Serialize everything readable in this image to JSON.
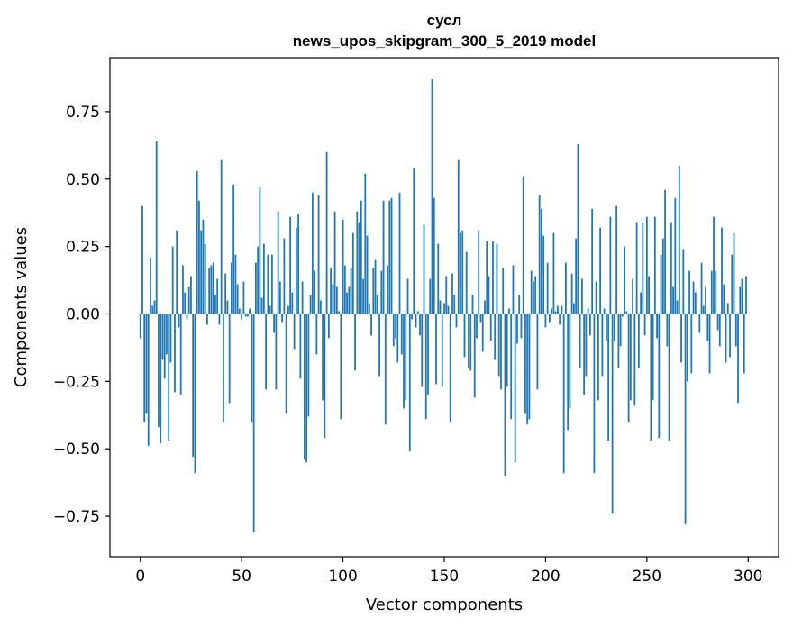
{
  "chart_data": {
    "type": "bar",
    "title": "сусл",
    "subtitle": "news_upos_skipgram_300_5_2019 model",
    "xlabel": "Vector components",
    "ylabel": "Components values",
    "xlim": [
      -15,
      315
    ],
    "ylim": [
      -0.9,
      0.95
    ],
    "xticks": [
      0,
      50,
      100,
      150,
      200,
      250,
      300
    ],
    "xtick_labels": [
      "0",
      "50",
      "100",
      "150",
      "200",
      "250",
      "300"
    ],
    "yticks": [
      -0.75,
      -0.5,
      -0.25,
      0.0,
      0.25,
      0.5,
      0.75
    ],
    "ytick_labels": [
      "−0.75",
      "−0.50",
      "−0.25",
      "0.00",
      "0.25",
      "0.50",
      "0.75"
    ],
    "grid": false,
    "bar_color": "#1f77b4",
    "x": "component index 0–299",
    "values": [
      -0.09,
      0.4,
      -0.4,
      -0.37,
      -0.49,
      0.21,
      0.03,
      0.05,
      0.64,
      -0.42,
      -0.48,
      -0.17,
      -0.24,
      -0.15,
      -0.47,
      -0.18,
      0.25,
      -0.29,
      0.31,
      -0.05,
      -0.3,
      0.18,
      0.08,
      -0.02,
      0.1,
      0.14,
      -0.53,
      -0.59,
      0.53,
      0.42,
      0.31,
      0.35,
      0.26,
      -0.04,
      0.17,
      0.18,
      0.19,
      0.07,
      0.13,
      -0.04,
      0.57,
      -0.4,
      0.15,
      0.05,
      -0.33,
      0.19,
      0.48,
      0.22,
      0.11,
      0.02,
      -0.02,
      0.12,
      -0.01,
      -0.01,
      0.02,
      -0.4,
      -0.81,
      0.19,
      0.25,
      0.47,
      0.06,
      0.26,
      -0.28,
      0.22,
      0.03,
      0.22,
      -0.07,
      -0.28,
      0.38,
      0.12,
      -0.03,
      0.28,
      -0.37,
      0.03,
      0.36,
      0.08,
      -0.13,
      0.32,
      0.37,
      -0.24,
      0.12,
      -0.54,
      -0.55,
      -0.38,
      0.07,
      0.45,
      0.16,
      -0.15,
      0.44,
      0.05,
      -0.32,
      -0.46,
      0.6,
      -0.09,
      0.17,
      0.11,
      0.38,
      0.1,
      0.01,
      -0.39,
      0.35,
      0.18,
      0.08,
      0.1,
      0.17,
      0.3,
      -0.21,
      0.38,
      0.34,
      0.42,
      0.13,
      0.52,
      0.29,
      0.04,
      -0.08,
      0.17,
      0.2,
      0.07,
      -0.23,
      0.16,
      0.42,
      -0.41,
      0.18,
      0.42,
      0.43,
      -0.12,
      -0.09,
      -0.18,
      0.45,
      -0.15,
      -0.35,
      -0.32,
      0.13,
      -0.51,
      -0.02,
      0.54,
      -0.05,
      0.01,
      -0.08,
      -0.27,
      0.33,
      -0.39,
      -0.3,
      0.13,
      0.87,
      0.43,
      -0.26,
      0.26,
      0.05,
      -0.27,
      0.04,
      0.14,
      0.03,
      -0.4,
      0.15,
      0.07,
      -0.05,
      0.57,
      0.3,
      0.31,
      -0.16,
      0.23,
      -0.2,
      -0.21,
      0.07,
      -0.31,
      -0.09,
      0.31,
      -0.03,
      -0.14,
      0.05,
      0.27,
      0.14,
      -0.1,
      0.27,
      -0.17,
      0.26,
      -0.23,
      -0.28,
      0.17,
      -0.6,
      -0.27,
      0.02,
      -0.39,
      0.18,
      -0.55,
      -0.11,
      0.07,
      -0.09,
      0.51,
      -0.37,
      -0.41,
      -0.39,
      0.16,
      0.12,
      0.14,
      -0.28,
      0.44,
      0.39,
      0.29,
      -0.05,
      0.19,
      -0.03,
      0.02,
      0.3,
      0.01,
      0.03,
      -0.04,
      0.03,
      -0.59,
      0.19,
      -0.43,
      -0.35,
      0.15,
      0.04,
      0.28,
      0.63,
      -0.2,
      0.13,
      -0.3,
      -0.23,
      0.02,
      -0.08,
      0.39,
      -0.59,
      0.12,
      -0.32,
      0.32,
      -0.23,
      0.02,
      -0.1,
      -0.47,
      0.36,
      -0.74,
      -0.1,
      0.4,
      -0.2,
      -0.12,
      -0.01,
      0.25,
      0.01,
      -0.4,
      -0.32,
      0.13,
      -0.34,
      0.34,
      -0.2,
      0.08,
      0.34,
      -0.08,
      0.36,
      0.14,
      -0.47,
      -0.32,
      0.36,
      -0.09,
      -0.46,
      0.22,
      0.28,
      0.46,
      -0.12,
      -0.47,
      0.34,
      0.1,
      0.43,
      0.05,
      0.55,
      -0.18,
      0.24,
      -0.78,
      -0.25,
      0.16,
      -0.22,
      0.12,
      0.08,
      0.0,
      -0.07,
      0.19,
      0.03,
      0.1,
      -0.1,
      -0.22,
      0.16,
      0.36,
      0.16,
      -0.06,
      -0.12,
      0.32,
      0.11,
      -0.18,
      0.04,
      -0.16,
      0.22,
      0.3,
      -0.12,
      -0.33,
      0.1,
      0.13,
      -0.22,
      0.14
    ]
  }
}
